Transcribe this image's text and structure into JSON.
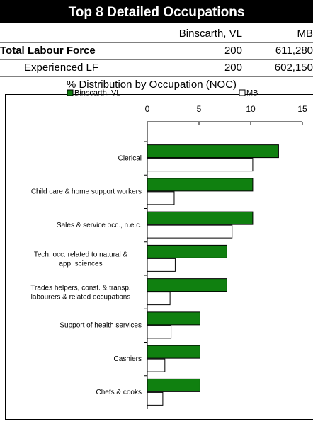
{
  "header": {
    "title": "Top 8 Detailed Occupations",
    "columns": [
      "Binscarth, VL",
      "MB"
    ],
    "rows": [
      [
        "Total Labour Force",
        "200",
        "611,280"
      ],
      [
        "Experienced LF",
        "200",
        "602,150"
      ]
    ],
    "subtitle": "% Distribution by Occupation (NOC)"
  },
  "chart_data": {
    "type": "hbar",
    "categories": [
      "Clerical",
      "Child care & home support workers",
      "Sales & service occ., n.e.c.",
      "Tech. occ. related to natural & app. sciences",
      "Trades helpers, const. & transp. labourers & related occupations",
      "Support of health services",
      "Cashiers",
      "Chefs & cooks"
    ],
    "series": [
      {
        "name": "Binscarth, VL",
        "color": "#108010",
        "values": [
          12.7,
          10.2,
          10.2,
          7.7,
          7.7,
          5.1,
          5.1,
          5.1
        ]
      },
      {
        "name": "MB",
        "color": "#ffffff",
        "values": [
          10.2,
          2.6,
          8.2,
          2.7,
          2.2,
          2.3,
          1.7,
          1.5
        ]
      }
    ],
    "xlim": [
      0,
      15
    ],
    "xticks": [
      0,
      5,
      10,
      15
    ],
    "legend": "top"
  }
}
